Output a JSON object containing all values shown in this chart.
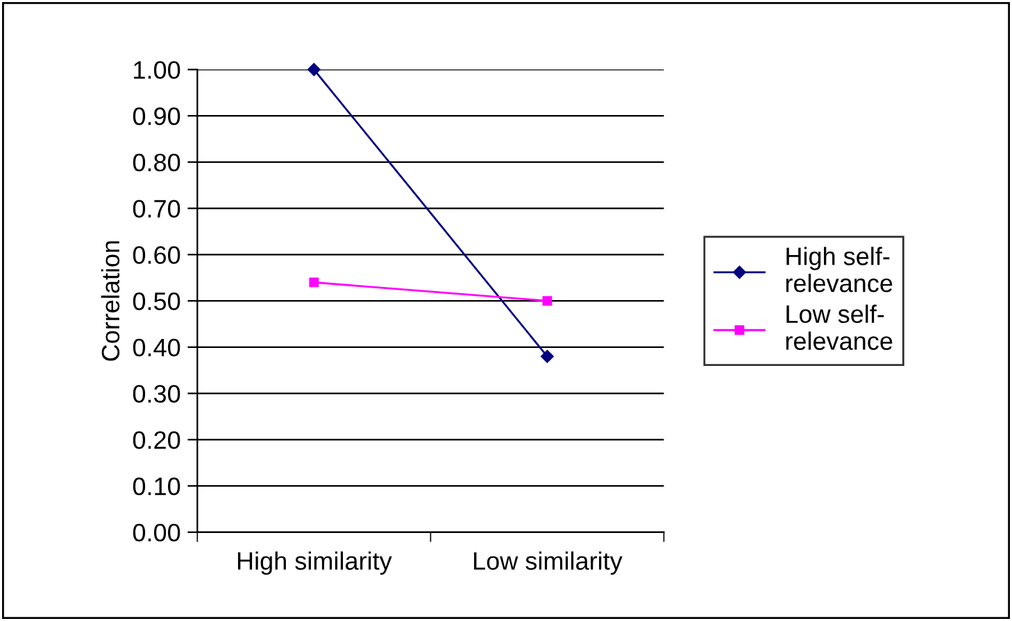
{
  "chart_data": {
    "type": "line",
    "ylabel": "Correlation",
    "categories": [
      "High similarity",
      "Low similarity"
    ],
    "series": [
      {
        "name": "High self-relevance",
        "color": "#000080",
        "values": [
          1.0,
          0.38
        ],
        "marker": "diamond"
      },
      {
        "name": "Low self-relevance",
        "color": "#ff00ff",
        "values": [
          0.54,
          0.5
        ],
        "marker": "square"
      }
    ],
    "ylim": [
      0,
      1
    ],
    "yticks": [
      {
        "value": 0,
        "label": "0.00"
      },
      {
        "value": 0.1,
        "label": "0.10"
      },
      {
        "value": 0.2,
        "label": "0.20"
      },
      {
        "value": 0.3,
        "label": "0.30"
      },
      {
        "value": 0.4,
        "label": "0.40"
      },
      {
        "value": 0.5,
        "label": "0.50"
      },
      {
        "value": 0.6,
        "label": "0.60"
      },
      {
        "value": 0.7,
        "label": "0.70"
      },
      {
        "value": 0.8,
        "label": "0.80"
      },
      {
        "value": 0.9,
        "label": "0.90"
      },
      {
        "value": 1,
        "label": "1.00"
      }
    ],
    "grid": "y",
    "legend": "right",
    "line_style": "solid"
  }
}
